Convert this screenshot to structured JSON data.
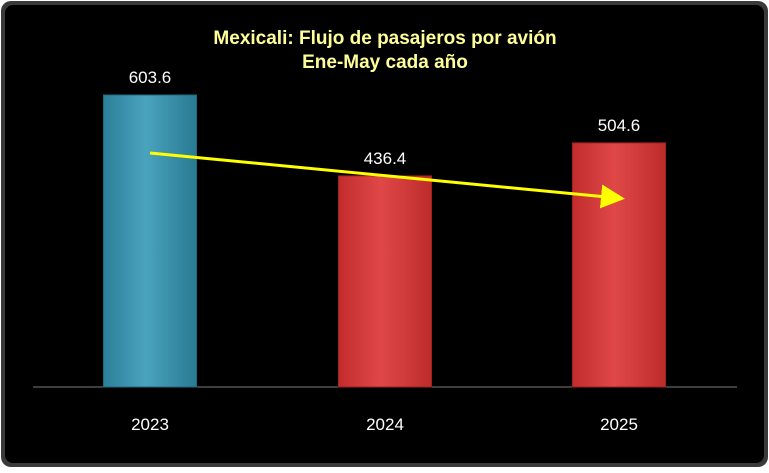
{
  "chart_data": {
    "type": "bar",
    "title": "Mexicali: Flujo de pasajeros por avión",
    "subtitle": "Ene-May cada año",
    "categories": [
      "2023",
      "2024",
      "2025"
    ],
    "values": [
      603.6,
      436.4,
      504.6
    ],
    "data_labels": [
      "603.6",
      "436.4",
      "504.6"
    ],
    "bar_colors": [
      "#3a8fa8",
      "#d33a3a",
      "#d33a3a"
    ],
    "ylim": [
      0,
      603.6
    ],
    "grid": false,
    "legend": "none",
    "background": "#000000",
    "title_color": "#ffff99",
    "label_color": "#ffffff",
    "trend_arrow": {
      "color": "#ffff00",
      "from_category": "2023",
      "to_category": "2025",
      "direction": "down"
    }
  }
}
